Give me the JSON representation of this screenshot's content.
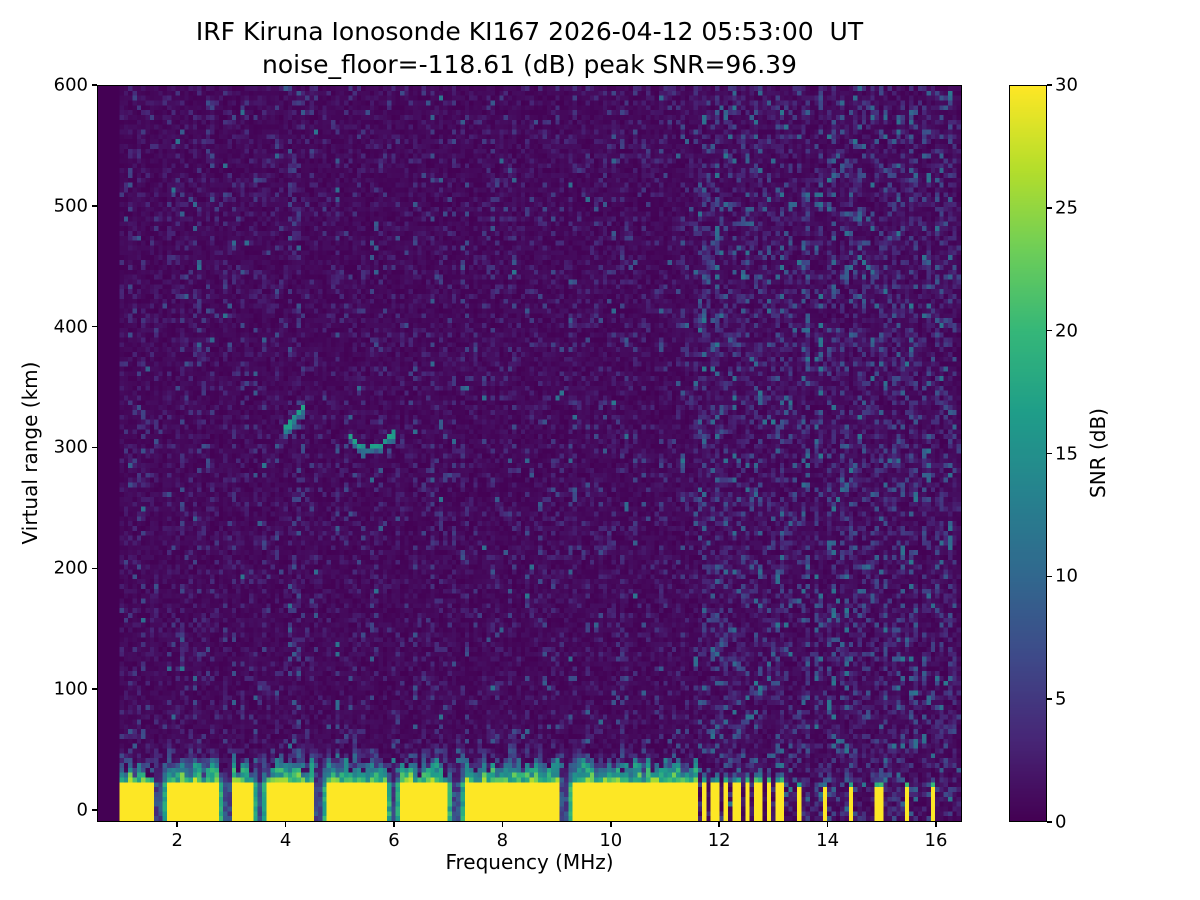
{
  "chart_data": {
    "type": "heatmap",
    "title": "IRF Kiruna Ionosonde KI167 2026-04-12 05:53:00  UT",
    "subtitle": "noise_floor=-118.61 (dB) peak SNR=96.39",
    "station": "IRF Kiruna Ionosonde KI167",
    "timestamp_ut": "2026-04-12 05:53:00",
    "noise_floor_db": -118.61,
    "peak_snr_db": 96.39,
    "xlabel": "Frequency (MHz)",
    "ylabel": "Virtual range (km)",
    "xlim": [
      0.52,
      16.48
    ],
    "ylim": [
      -10,
      600
    ],
    "x_ticks": [
      2,
      4,
      6,
      8,
      10,
      12,
      14,
      16
    ],
    "y_ticks": [
      0,
      100,
      200,
      300,
      400,
      500,
      600
    ],
    "grid": false,
    "colorbar": {
      "label": "SNR (dB)",
      "min": 0,
      "max": 30,
      "ticks": [
        0,
        5,
        10,
        15,
        20,
        25,
        30
      ],
      "colormap": "viridis"
    },
    "features": {
      "noise_seed": 167,
      "bins": {
        "freq": 200,
        "range": 152
      },
      "data_start_mhz": 0.9,
      "background_noise": {
        "sparse_fraction": 0.42,
        "mean_db": 1.7,
        "max_db": 12
      },
      "ground_clutter": {
        "freq_range_mhz": [
          0.9,
          11.65
        ],
        "saturated_top_km": 22,
        "jagged_top_km": [
          26,
          42
        ],
        "fringe_top_km": [
          34,
          56
        ],
        "notch_freqs_mhz": [
          1.65,
          2.9,
          3.5,
          4.6,
          6.0,
          7.15,
          9.15
        ]
      },
      "clutter_bars_mhz": [
        11.73,
        11.93,
        12.13,
        12.33,
        12.53,
        12.73,
        12.93,
        13.13,
        13.5,
        13.95,
        14.45,
        14.95,
        15.5,
        15.95
      ],
      "interference_stripes": {
        "freqs_mhz": [
          11.73,
          11.93,
          12.13,
          12.33,
          12.53,
          12.73,
          12.93,
          13.13,
          13.35,
          13.6,
          13.85,
          14.1,
          14.35,
          14.6,
          14.85,
          15.1,
          15.35,
          15.6,
          15.85,
          16.1,
          16.3
        ],
        "boost": 2.6
      },
      "echo_traces": [
        {
          "points_mhz_km": [
            [
              3.98,
              315
            ],
            [
              4.08,
              320
            ],
            [
              4.2,
              327
            ],
            [
              4.32,
              333
            ]
          ]
        },
        {
          "points_mhz_km": [
            [
              5.15,
              310
            ],
            [
              5.3,
              303
            ],
            [
              5.5,
              298
            ],
            [
              5.72,
              301
            ],
            [
              5.9,
              307
            ],
            [
              5.98,
              312
            ]
          ]
        }
      ]
    }
  }
}
